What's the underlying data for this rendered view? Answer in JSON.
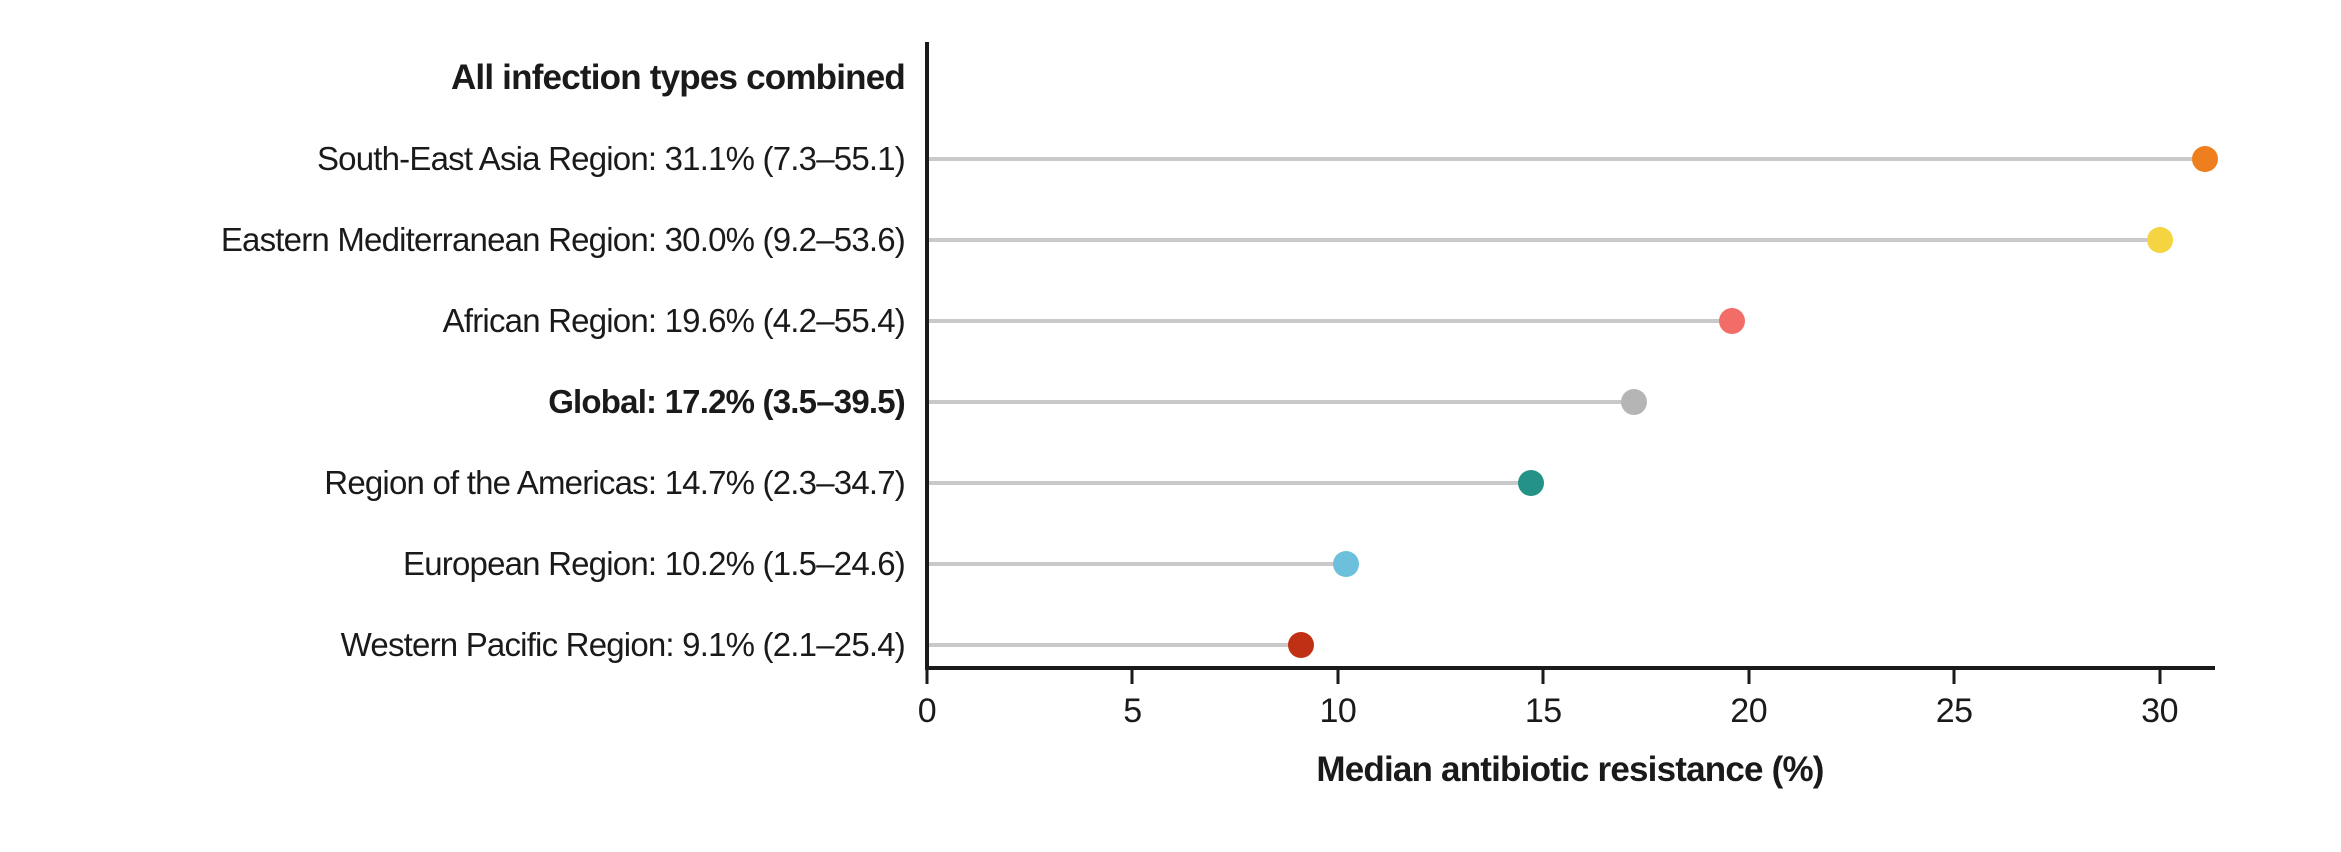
{
  "figure": {
    "background": "#ffffff"
  },
  "chart_data": {
    "type": "lollipop",
    "title": "All infection types combined",
    "xlabel": "Median antibiotic resistance (%)",
    "x_ticks": [
      0,
      5,
      10,
      15,
      20,
      25,
      30
    ],
    "xlim": [
      0,
      31.3
    ],
    "grid": false,
    "legend": "none",
    "axis_color": "#1a1a1a",
    "stem_color": "#c9c9c9",
    "rows": [
      {
        "label": "South-East Asia Region: 31.1% (7.3–55.1)",
        "region": "South-East Asia Region",
        "value": 31.1,
        "ci_low": 7.3,
        "ci_high": 55.1,
        "color": "#ef7f1e",
        "bold": false
      },
      {
        "label": "Eastern Mediterranean Region: 30.0% (9.2–53.6)",
        "region": "Eastern Mediterranean Region",
        "value": 30.0,
        "ci_low": 9.2,
        "ci_high": 53.6,
        "color": "#f5d442",
        "bold": false
      },
      {
        "label": "African Region: 19.6% (4.2–55.4)",
        "region": "African Region",
        "value": 19.6,
        "ci_low": 4.2,
        "ci_high": 55.4,
        "color": "#f36d68",
        "bold": false
      },
      {
        "label": "Global: 17.2% (3.5–39.5)",
        "region": "Global",
        "value": 17.2,
        "ci_low": 3.5,
        "ci_high": 39.5,
        "color": "#b5b5b5",
        "bold": true
      },
      {
        "label": "Region of the Americas: 14.7% (2.3–34.7)",
        "region": "Region of the Americas",
        "value": 14.7,
        "ci_low": 2.3,
        "ci_high": 34.7,
        "color": "#249287",
        "bold": false
      },
      {
        "label": "European Region: 10.2% (1.5–24.6)",
        "region": "European Region",
        "value": 10.2,
        "ci_low": 1.5,
        "ci_high": 24.6,
        "color": "#6cc0dc",
        "bold": false
      },
      {
        "label": "Western Pacific Region: 9.1% (2.1–25.4)",
        "region": "Western Pacific Region",
        "value": 9.1,
        "ci_low": 2.1,
        "ci_high": 25.4,
        "color": "#c03014",
        "bold": false
      }
    ]
  }
}
